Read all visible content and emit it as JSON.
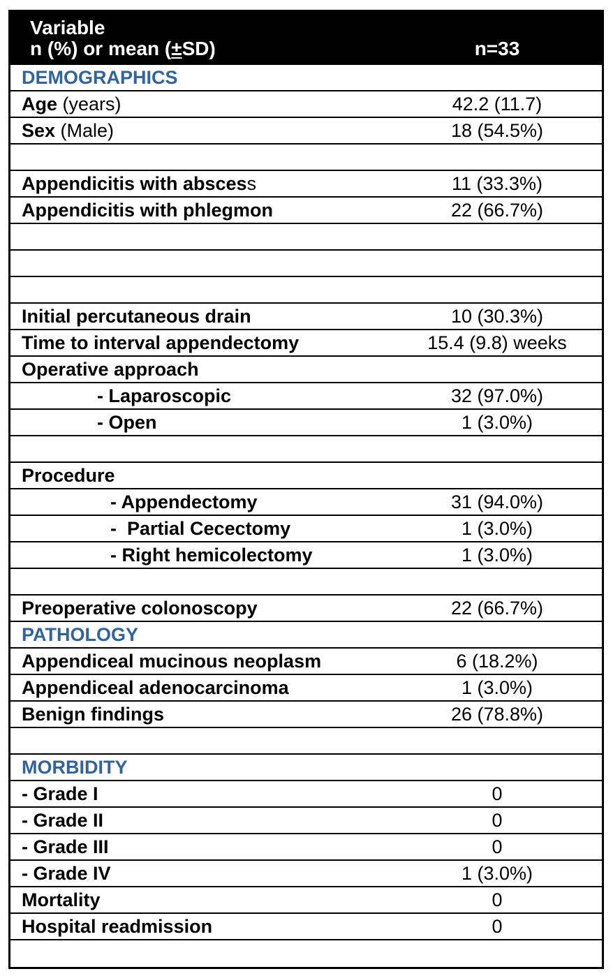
{
  "header": {
    "title": "Variable",
    "subtitle_prefix": "n (%) or mean (",
    "subtitle_pm": "±",
    "subtitle_suffix": "SD)",
    "count": "n=33"
  },
  "colors": {
    "section_blue": "#31649C",
    "header_bg": "#000000",
    "header_text": "#FFFFFF",
    "border_black": "#000000"
  },
  "rows": [
    {
      "type": "section",
      "text": "DEMOGRAPHICS"
    },
    {
      "type": "data",
      "level": 0,
      "bold": "Age",
      "regular": " (years)",
      "value": "42.2 (11.7)"
    },
    {
      "type": "data",
      "level": 0,
      "bold": "Sex",
      "regular": " (Male)",
      "value": "18 (54.5%)"
    },
    {
      "type": "empty"
    },
    {
      "type": "data",
      "level": 0,
      "bold": "Appendicitis with absces",
      "regular": "s",
      "value": "11 (33.3%)"
    },
    {
      "type": "data",
      "level": 0,
      "bold": "Appendicitis with phlegmon",
      "regular": "",
      "value": "22 (66.7%)"
    },
    {
      "type": "empty"
    },
    {
      "type": "empty"
    },
    {
      "type": "empty"
    },
    {
      "type": "data",
      "level": 0,
      "bold": "Initial percutaneous drain",
      "regular": "",
      "value": "10 (30.3%)"
    },
    {
      "type": "data",
      "level": 0,
      "bold": "Time to interval appendectomy",
      "regular": "",
      "value": "15.4 (9.8) weeks"
    },
    {
      "type": "data",
      "level": 0,
      "bold": "Operative approach",
      "regular": "",
      "value": ""
    },
    {
      "type": "data",
      "level": 1,
      "bold": "- Laparoscopic",
      "regular": "",
      "value": "32 (97.0%)"
    },
    {
      "type": "data",
      "level": 1,
      "bold": "- Open",
      "regular": "",
      "value": "1 (3.0%)"
    },
    {
      "type": "empty"
    },
    {
      "type": "data",
      "level": 0,
      "bold": "Procedure",
      "regular": "",
      "value": ""
    },
    {
      "type": "data",
      "level": 2,
      "bold": "- Appendectomy",
      "regular": "",
      "value": "31 (94.0%)"
    },
    {
      "type": "data",
      "level": 2,
      "bold": "-  Partial Cecectomy",
      "regular": "",
      "value": "1 (3.0%)"
    },
    {
      "type": "data",
      "level": 2,
      "bold": "- Right hemicolectomy",
      "regular": "",
      "value": "1 (3.0%)"
    },
    {
      "type": "empty"
    },
    {
      "type": "data",
      "level": 0,
      "bold": "Preoperative colonoscopy",
      "regular": "",
      "value": "22 (66.7%)"
    },
    {
      "type": "section",
      "text": "PATHOLOGY"
    },
    {
      "type": "data",
      "level": 0,
      "bold": "Appendiceal mucinous neoplasm",
      "regular": "",
      "value": "6 (18.2%)"
    },
    {
      "type": "data",
      "level": 0,
      "bold": "Appendiceal adenocarcinoma",
      "regular": "",
      "value": "1 (3.0%)"
    },
    {
      "type": "data",
      "level": 0,
      "bold": "Benign findings",
      "regular": "",
      "value": "26 (78.8%)"
    },
    {
      "type": "empty"
    },
    {
      "type": "section",
      "text": "MORBIDITY"
    },
    {
      "type": "data",
      "level": 0,
      "bold": "- Grade I",
      "regular": "",
      "value": "0"
    },
    {
      "type": "data",
      "level": 0,
      "bold": "- Grade II",
      "regular": "",
      "value": "0"
    },
    {
      "type": "data",
      "level": 0,
      "bold": "- Grade III",
      "regular": "",
      "value": "0"
    },
    {
      "type": "data",
      "level": 0,
      "bold": "- Grade IV",
      "regular": "",
      "value": "1 (3.0%)"
    },
    {
      "type": "data",
      "level": 0,
      "bold": "Mortality",
      "regular": "",
      "value": "0"
    },
    {
      "type": "data",
      "level": 0,
      "bold": "Hospital readmission",
      "regular": "",
      "value": "0"
    },
    {
      "type": "empty"
    }
  ]
}
